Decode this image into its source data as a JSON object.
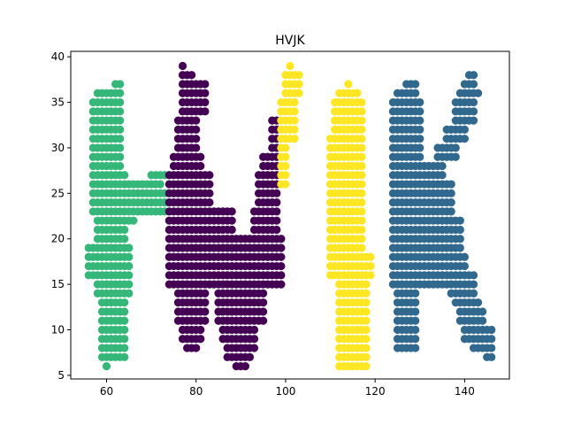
{
  "chart_data": {
    "type": "scatter",
    "title": "HVJK",
    "xlabel": "",
    "ylabel": "",
    "xlim": [
      52,
      150
    ],
    "ylim": [
      4.6,
      40.6
    ],
    "x_ticks": [
      60,
      80,
      100,
      120,
      140
    ],
    "y_ticks": [
      5,
      10,
      15,
      20,
      25,
      30,
      35,
      40
    ],
    "grid": false,
    "legend": "none",
    "colors": {
      "H": "#35b779",
      "V": "#440154",
      "J": "#fde725",
      "K": "#31688e"
    },
    "groups": [
      {
        "letter": "H",
        "color": "#35b779",
        "segments": [
          {
            "y": [
              6,
              6
            ],
            "x": [
              60,
              60
            ]
          },
          {
            "y": [
              7,
              13
            ],
            "x": [
              59,
              64
            ]
          },
          {
            "y": [
              14,
              15
            ],
            "x": [
              58,
              65
            ]
          },
          {
            "y": [
              16,
              19
            ],
            "x": [
              56,
              65
            ]
          },
          {
            "y": [
              20,
              21
            ],
            "x": [
              58,
              64
            ]
          },
          {
            "y": [
              22,
              22
            ],
            "x": [
              58,
              66
            ]
          },
          {
            "y": [
              23,
              25
            ],
            "x": [
              57,
              73
            ]
          },
          {
            "y": [
              26,
              26
            ],
            "x": [
              57,
              72
            ]
          },
          {
            "y": [
              27,
              27
            ],
            "x": [
              57,
              64
            ],
            "extra_x": [
              70,
              73
            ]
          },
          {
            "y": [
              28,
              35
            ],
            "x": [
              57,
              63
            ]
          },
          {
            "y": [
              36,
              36
            ],
            "x": [
              58,
              63
            ]
          },
          {
            "y": [
              37,
              37
            ],
            "x": [
              62,
              63
            ]
          }
        ]
      },
      {
        "letter": "V",
        "color": "#440154",
        "segments": [
          {
            "y": [
              6,
              6
            ],
            "x": [
              89,
              91
            ]
          },
          {
            "y": [
              7,
              7
            ],
            "x": [
              87,
              92
            ]
          },
          {
            "y": [
              8,
              8
            ],
            "x": [
              78,
              80
            ],
            "extra_x": [
              87,
              93
            ]
          },
          {
            "y": [
              9,
              10
            ],
            "x": [
              77,
              81
            ],
            "extra_x": [
              86,
              93
            ]
          },
          {
            "y": [
              11,
              14
            ],
            "x": [
              76,
              82
            ],
            "extra_x": [
              85,
              95
            ]
          },
          {
            "y": [
              15,
              20
            ],
            "x": [
              74,
              99
            ]
          },
          {
            "y": [
              21,
              23
            ],
            "x": [
              74,
              88
            ],
            "extra_x": [
              93,
              98
            ]
          },
          {
            "y": [
              24,
              27
            ],
            "x": [
              74,
              83
            ],
            "extra_x": [
              94,
              98
            ]
          },
          {
            "y": [
              28,
              29
            ],
            "x": [
              75,
              81
            ],
            "extra_x": [
              95,
              98
            ]
          },
          {
            "y": [
              30,
              33
            ],
            "x": [
              76,
              80
            ],
            "extra_x": [
              97,
              98
            ]
          },
          {
            "y": [
              34,
              37
            ],
            "x": [
              77,
              82
            ]
          },
          {
            "y": [
              38,
              38
            ],
            "x": [
              77,
              79
            ]
          },
          {
            "y": [
              39,
              39
            ],
            "x": [
              77,
              77
            ]
          }
        ]
      },
      {
        "letter": "J",
        "color": "#fde725",
        "segments": [
          {
            "y": [
              6,
              10
            ],
            "x": [
              112,
              118
            ]
          },
          {
            "y": [
              11,
              15
            ],
            "x": [
              112,
              118
            ]
          },
          {
            "y": [
              16,
              18
            ],
            "x": [
              110,
              119
            ]
          },
          {
            "y": [
              19,
              22
            ],
            "x": [
              110,
              117
            ]
          },
          {
            "y": [
              23,
              31
            ],
            "x": [
              110,
              117
            ]
          },
          {
            "y": [
              32,
              35
            ],
            "x": [
              111,
              117
            ]
          },
          {
            "y": [
              36,
              36
            ],
            "x": [
              112,
              116
            ]
          },
          {
            "y": [
              37,
              37
            ],
            "x": [
              114,
              114
            ]
          },
          {
            "y": [
              26,
              30
            ],
            "x": [
              99,
              100
            ]
          },
          {
            "y": [
              31,
              35
            ],
            "x": [
              99,
              102
            ]
          },
          {
            "y": [
              36,
              38
            ],
            "x": [
              100,
              103
            ]
          },
          {
            "y": [
              39,
              39
            ],
            "x": [
              101,
              101
            ]
          }
        ]
      },
      {
        "letter": "K",
        "color": "#31688e",
        "segments": [
          {
            "y": [
              7,
              7
            ],
            "x": [
              145,
              146
            ]
          },
          {
            "y": [
              8,
              8
            ],
            "x": [
              125,
              129
            ],
            "extra_x": [
              142,
              146
            ]
          },
          {
            "y": [
              9,
              10
            ],
            "x": [
              125,
              129
            ],
            "extra_x": [
              140,
              146
            ]
          },
          {
            "y": [
              11,
              12
            ],
            "x": [
              125,
              129
            ],
            "extra_x": [
              139,
              144
            ]
          },
          {
            "y": [
              13,
              13
            ],
            "x": [
              125,
              129
            ],
            "extra_x": [
              138,
              143
            ]
          },
          {
            "y": [
              14,
              14
            ],
            "x": [
              125,
              129
            ],
            "extra_x": [
              137,
              142
            ]
          },
          {
            "y": [
              15,
              16
            ],
            "x": [
              124,
              142
            ]
          },
          {
            "y": [
              17,
              18
            ],
            "x": [
              124,
              140
            ]
          },
          {
            "y": [
              19,
              22
            ],
            "x": [
              124,
              139
            ]
          },
          {
            "y": [
              23,
              26
            ],
            "x": [
              124,
              137
            ]
          },
          {
            "y": [
              27,
              28
            ],
            "x": [
              124,
              135
            ]
          },
          {
            "y": [
              29,
              30
            ],
            "x": [
              124,
              130
            ],
            "extra_x": [
              134,
              138
            ]
          },
          {
            "y": [
              31,
              32
            ],
            "x": [
              124,
              130
            ],
            "extra_x": [
              136,
              140
            ]
          },
          {
            "y": [
              33,
              35
            ],
            "x": [
              124,
              130
            ],
            "extra_x": [
              138,
              142
            ]
          },
          {
            "y": [
              36,
              36
            ],
            "x": [
              125,
              129
            ],
            "extra_x": [
              139,
              143
            ]
          },
          {
            "y": [
              37,
              37
            ],
            "x": [
              127,
              129
            ],
            "extra_x": [
              140,
              142
            ]
          },
          {
            "y": [
              38,
              38
            ],
            "x": [
              141,
              142
            ]
          }
        ]
      }
    ]
  }
}
